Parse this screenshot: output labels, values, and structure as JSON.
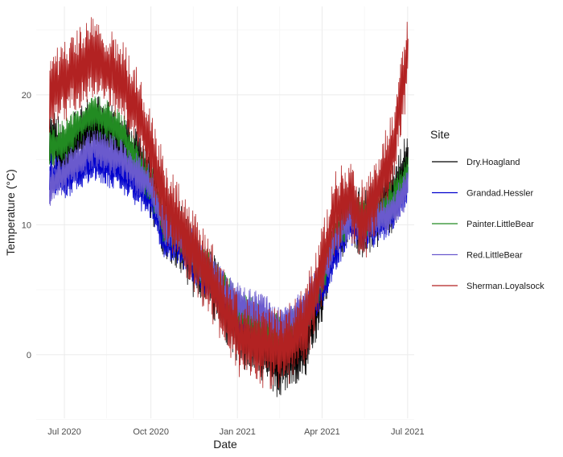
{
  "chart_data": {
    "type": "line",
    "xlabel": "Date",
    "ylabel": "Temperature (°C)",
    "x_ticks": [
      "Jul 2020",
      "Oct 2020",
      "Jan 2021",
      "Apr 2021",
      "Jul 2021"
    ],
    "y_ticks": [
      "0",
      "10",
      "20"
    ],
    "xlim": [
      "2020-06-01",
      "2021-07-08"
    ],
    "ylim": [
      -4.9,
      26.8
    ],
    "grid": true,
    "legend": {
      "title": "Site",
      "position": "right"
    },
    "x": [
      "2020-06-15",
      "2020-07-01",
      "2020-07-15",
      "2020-08-01",
      "2020-08-15",
      "2020-09-01",
      "2020-09-15",
      "2020-10-01",
      "2020-10-15",
      "2020-11-01",
      "2020-11-15",
      "2020-12-01",
      "2020-12-15",
      "2021-01-01",
      "2021-01-15",
      "2021-02-01",
      "2021-02-15",
      "2021-03-01",
      "2021-03-15",
      "2021-04-01",
      "2021-04-15",
      "2021-05-01",
      "2021-05-15",
      "2021-06-01",
      "2021-06-15",
      "2021-07-01"
    ],
    "series": [
      {
        "name": "Dry.Hoagland",
        "color": "#000000",
        "values": [
          17,
          15,
          16.5,
          17.5,
          17,
          16,
          15,
          13,
          10,
          9,
          7,
          6,
          4,
          2,
          1,
          0,
          -1,
          0,
          1,
          5,
          9,
          11,
          10,
          11,
          12,
          15
        ]
      },
      {
        "name": "Grandad.Hessler",
        "color": "#0000cd",
        "values": [
          14,
          13.5,
          14,
          15,
          14.5,
          14,
          13,
          12,
          9,
          8.5,
          7,
          6,
          5,
          3,
          2.5,
          2,
          1.5,
          2,
          3,
          5,
          8,
          10,
          9.5,
          10,
          11,
          13
        ]
      },
      {
        "name": "Painter.LittleBear",
        "color": "#228b22",
        "values": [
          16,
          16.5,
          17.5,
          18.5,
          18,
          17,
          15,
          13,
          10,
          9,
          7.5,
          6.5,
          5,
          3.5,
          3,
          2,
          1.5,
          2,
          3,
          6,
          9,
          11,
          10.5,
          11,
          12,
          14
        ]
      },
      {
        "name": "Red.LittleBear",
        "color": "#6a5acd",
        "values": [
          13,
          14,
          15,
          16,
          15.5,
          15,
          14,
          13,
          10,
          9,
          8,
          6.5,
          5,
          4,
          3.5,
          3,
          2,
          3,
          4,
          6,
          9,
          10.5,
          10,
          10.5,
          11,
          13
        ]
      },
      {
        "name": "Sherman.Loyalsock",
        "color": "#b22222",
        "values": [
          20,
          21,
          22,
          23,
          22,
          21,
          19,
          16,
          12,
          10,
          8,
          6,
          4,
          1.5,
          1,
          0.5,
          0.5,
          1,
          2.5,
          7,
          11,
          12,
          10,
          13,
          16,
          23
        ]
      }
    ]
  }
}
